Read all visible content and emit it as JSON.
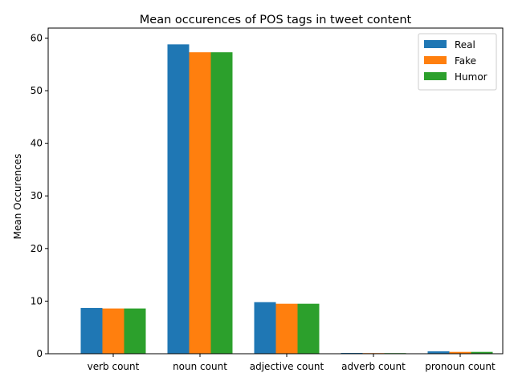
{
  "chart_data": {
    "type": "bar",
    "title": "Mean occurences of POS tags in tweet content",
    "xlabel": "",
    "ylabel": "Mean Occurences",
    "categories": [
      "verb count",
      "noun count",
      "adjective count",
      "adverb count",
      "pronoun count"
    ],
    "series": [
      {
        "name": "Real",
        "color": "#1f77b4",
        "values": [
          8.7,
          58.8,
          9.8,
          0.15,
          0.45
        ]
      },
      {
        "name": "Fake",
        "color": "#ff7f0e",
        "values": [
          8.6,
          57.3,
          9.5,
          0.12,
          0.35
        ]
      },
      {
        "name": "Humor",
        "color": "#2ca02c",
        "values": [
          8.6,
          57.3,
          9.5,
          0.12,
          0.35
        ]
      }
    ],
    "ylim": [
      0,
      61.9
    ],
    "yticks": [
      0,
      10,
      20,
      30,
      40,
      50,
      60
    ],
    "grid": false,
    "legend_position": "top-right"
  }
}
